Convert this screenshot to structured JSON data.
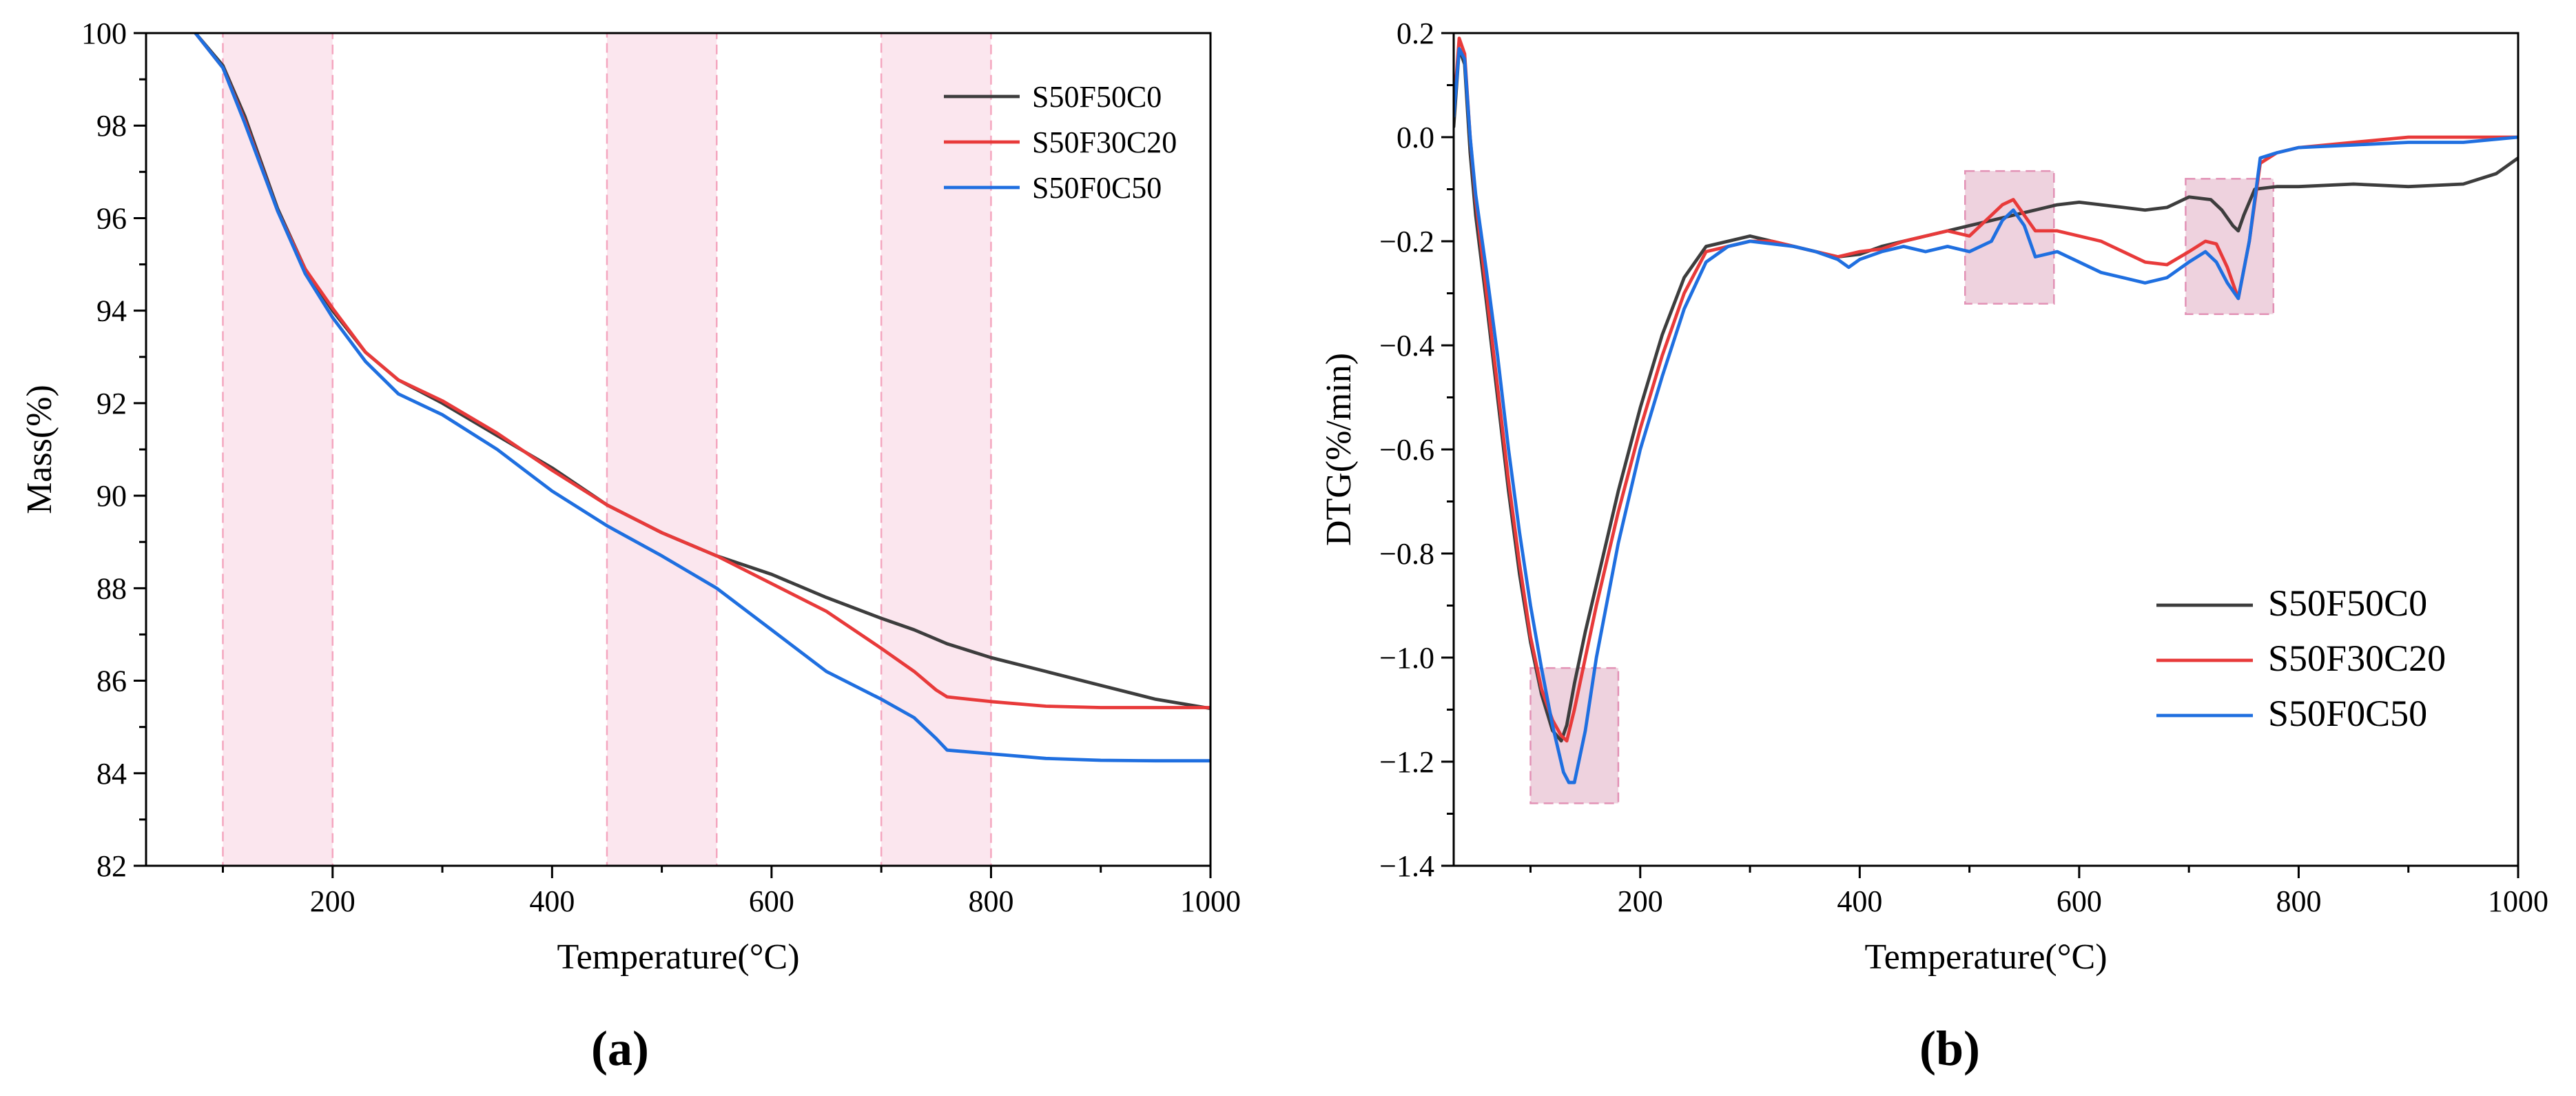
{
  "chart_data": [
    {
      "type": "line",
      "panel_label": "(a)",
      "xlabel": "Temperature(°C)",
      "ylabel": "Mass(%)",
      "xlim": [
        30,
        1000
      ],
      "ylim": [
        82,
        100
      ],
      "xticks": [
        200,
        400,
        600,
        800,
        1000
      ],
      "yticks": [
        82,
        84,
        86,
        88,
        90,
        92,
        94,
        96,
        98,
        100
      ],
      "legend_position": "top-right",
      "highlight_bands": [
        [
          100,
          200
        ],
        [
          450,
          550
        ],
        [
          700,
          800
        ]
      ],
      "highlight_color": "#fbe6ee",
      "series": [
        {
          "name": "S50F50C0",
          "color": "#3d3d3d",
          "x": [
            75,
            100,
            120,
            150,
            175,
            200,
            230,
            260,
            300,
            350,
            400,
            450,
            500,
            550,
            600,
            650,
            700,
            730,
            750,
            760,
            800,
            850,
            900,
            950,
            1000
          ],
          "y": [
            100,
            99.3,
            98.2,
            96.2,
            94.9,
            94.0,
            93.1,
            92.5,
            92.0,
            91.3,
            90.6,
            89.8,
            89.2,
            88.7,
            88.3,
            87.8,
            87.35,
            87.1,
            86.9,
            86.8,
            86.5,
            86.2,
            85.9,
            85.6,
            85.4
          ],
          "width": 4
        },
        {
          "name": "S50F30C20",
          "color": "#e83a3a",
          "x": [
            75,
            100,
            120,
            150,
            175,
            200,
            230,
            260,
            300,
            350,
            400,
            450,
            500,
            550,
            600,
            650,
            700,
            730,
            750,
            760,
            800,
            850,
            900,
            950,
            1000
          ],
          "y": [
            100,
            99.25,
            98.1,
            96.15,
            94.9,
            94.05,
            93.1,
            92.5,
            92.05,
            91.35,
            90.55,
            89.8,
            89.2,
            88.7,
            88.1,
            87.5,
            86.7,
            86.2,
            85.8,
            85.65,
            85.55,
            85.45,
            85.42,
            85.42,
            85.42
          ],
          "width": 4
        },
        {
          "name": "S50F0C50",
          "color": "#1f6fe0",
          "x": [
            75,
            100,
            120,
            150,
            175,
            200,
            230,
            260,
            300,
            350,
            400,
            450,
            500,
            550,
            600,
            650,
            700,
            730,
            750,
            760,
            800,
            850,
            900,
            950,
            1000
          ],
          "y": [
            100,
            99.25,
            98.05,
            96.15,
            94.8,
            93.85,
            92.9,
            92.2,
            91.75,
            91.0,
            90.1,
            89.35,
            88.7,
            88.0,
            87.1,
            86.2,
            85.6,
            85.2,
            84.75,
            84.5,
            84.42,
            84.32,
            84.28,
            84.27,
            84.27
          ],
          "width": 4
        }
      ]
    },
    {
      "type": "line",
      "panel_label": "(b)",
      "xlabel": "Temperature(°C)",
      "ylabel": "DTG(%/min)",
      "xlim": [
        30,
        1000
      ],
      "ylim": [
        -1.4,
        0.2
      ],
      "xticks": [
        200,
        400,
        600,
        800,
        1000
      ],
      "yticks": [
        -1.4,
        -1.2,
        -1.0,
        -0.8,
        -0.6,
        -0.4,
        -0.2,
        0.0,
        0.2
      ],
      "ytick_labels": [
        "−1.4",
        "−1.2",
        "−1.0",
        "−0.8",
        "−0.6",
        "−0.4",
        "−0.2",
        "0.0",
        "0.2"
      ],
      "legend_position": "bottom-right",
      "highlight_boxes": [
        {
          "x": [
            100,
            180
          ],
          "y": [
            -1.28,
            -1.02
          ]
        },
        {
          "x": [
            496,
            577
          ],
          "y": [
            -0.32,
            -0.065
          ]
        },
        {
          "x": [
            697,
            777
          ],
          "y": [
            -0.34,
            -0.08
          ]
        }
      ],
      "highlight_color": "#e8c3d3",
      "series": [
        {
          "name": "S50F50C0",
          "color": "#3d3d3d",
          "x": [
            30,
            35,
            40,
            45,
            50,
            60,
            70,
            80,
            90,
            100,
            110,
            120,
            128,
            133,
            140,
            150,
            160,
            180,
            200,
            220,
            240,
            260,
            280,
            300,
            320,
            340,
            360,
            380,
            400,
            420,
            440,
            460,
            480,
            500,
            520,
            540,
            560,
            580,
            600,
            620,
            640,
            660,
            680,
            700,
            720,
            730,
            740,
            745,
            750,
            760,
            780,
            800,
            850,
            900,
            950,
            980,
            1000
          ],
          "y": [
            0.02,
            0.17,
            0.14,
            -0.03,
            -0.15,
            -0.32,
            -0.5,
            -0.68,
            -0.84,
            -0.97,
            -1.07,
            -1.14,
            -1.16,
            -1.13,
            -1.05,
            -0.95,
            -0.86,
            -0.68,
            -0.52,
            -0.38,
            -0.27,
            -0.21,
            -0.2,
            -0.19,
            -0.2,
            -0.21,
            -0.22,
            -0.23,
            -0.225,
            -0.21,
            -0.2,
            -0.19,
            -0.18,
            -0.17,
            -0.16,
            -0.15,
            -0.14,
            -0.13,
            -0.125,
            -0.13,
            -0.135,
            -0.14,
            -0.135,
            -0.115,
            -0.12,
            -0.14,
            -0.17,
            -0.18,
            -0.15,
            -0.1,
            -0.095,
            -0.095,
            -0.09,
            -0.095,
            -0.09,
            -0.07,
            -0.04
          ],
          "width": 4
        },
        {
          "name": "S50F30C20",
          "color": "#e83a3a",
          "x": [
            30,
            35,
            40,
            45,
            50,
            60,
            70,
            80,
            90,
            100,
            110,
            120,
            128,
            133,
            140,
            150,
            160,
            180,
            200,
            220,
            240,
            260,
            280,
            300,
            320,
            340,
            360,
            380,
            400,
            420,
            440,
            460,
            480,
            500,
            520,
            530,
            540,
            550,
            560,
            580,
            600,
            620,
            640,
            660,
            680,
            700,
            715,
            725,
            735,
            745,
            755,
            765,
            780,
            800,
            850,
            900,
            950,
            1000
          ],
          "y": [
            0.05,
            0.19,
            0.16,
            0.0,
            -0.12,
            -0.3,
            -0.48,
            -0.66,
            -0.82,
            -0.96,
            -1.06,
            -1.12,
            -1.15,
            -1.16,
            -1.1,
            -1.0,
            -0.9,
            -0.72,
            -0.56,
            -0.42,
            -0.3,
            -0.22,
            -0.21,
            -0.2,
            -0.2,
            -0.21,
            -0.22,
            -0.23,
            -0.22,
            -0.215,
            -0.2,
            -0.19,
            -0.18,
            -0.19,
            -0.15,
            -0.13,
            -0.12,
            -0.15,
            -0.18,
            -0.18,
            -0.19,
            -0.2,
            -0.22,
            -0.24,
            -0.245,
            -0.22,
            -0.2,
            -0.205,
            -0.25,
            -0.31,
            -0.2,
            -0.05,
            -0.03,
            -0.02,
            -0.01,
            0.0,
            0.0,
            0.0
          ],
          "width": 4
        },
        {
          "name": "S50F0C50",
          "color": "#1f6fe0",
          "x": [
            30,
            35,
            40,
            45,
            50,
            60,
            70,
            80,
            90,
            100,
            110,
            120,
            130,
            135,
            140,
            150,
            160,
            180,
            200,
            220,
            240,
            260,
            280,
            300,
            320,
            340,
            360,
            380,
            390,
            400,
            420,
            440,
            460,
            480,
            500,
            520,
            530,
            540,
            550,
            560,
            580,
            600,
            620,
            640,
            660,
            680,
            700,
            715,
            725,
            735,
            745,
            755,
            765,
            780,
            800,
            850,
            900,
            950,
            1000
          ],
          "y": [
            0.04,
            0.17,
            0.15,
            0.0,
            -0.11,
            -0.26,
            -0.42,
            -0.6,
            -0.76,
            -0.9,
            -1.02,
            -1.13,
            -1.22,
            -1.24,
            -1.24,
            -1.14,
            -1.0,
            -0.78,
            -0.6,
            -0.46,
            -0.33,
            -0.24,
            -0.21,
            -0.2,
            -0.205,
            -0.21,
            -0.22,
            -0.235,
            -0.25,
            -0.235,
            -0.22,
            -0.21,
            -0.22,
            -0.21,
            -0.22,
            -0.2,
            -0.16,
            -0.14,
            -0.17,
            -0.23,
            -0.22,
            -0.24,
            -0.26,
            -0.27,
            -0.28,
            -0.27,
            -0.24,
            -0.22,
            -0.24,
            -0.28,
            -0.31,
            -0.2,
            -0.04,
            -0.03,
            -0.02,
            -0.015,
            -0.01,
            -0.01,
            0.0
          ],
          "width": 4
        }
      ]
    }
  ]
}
